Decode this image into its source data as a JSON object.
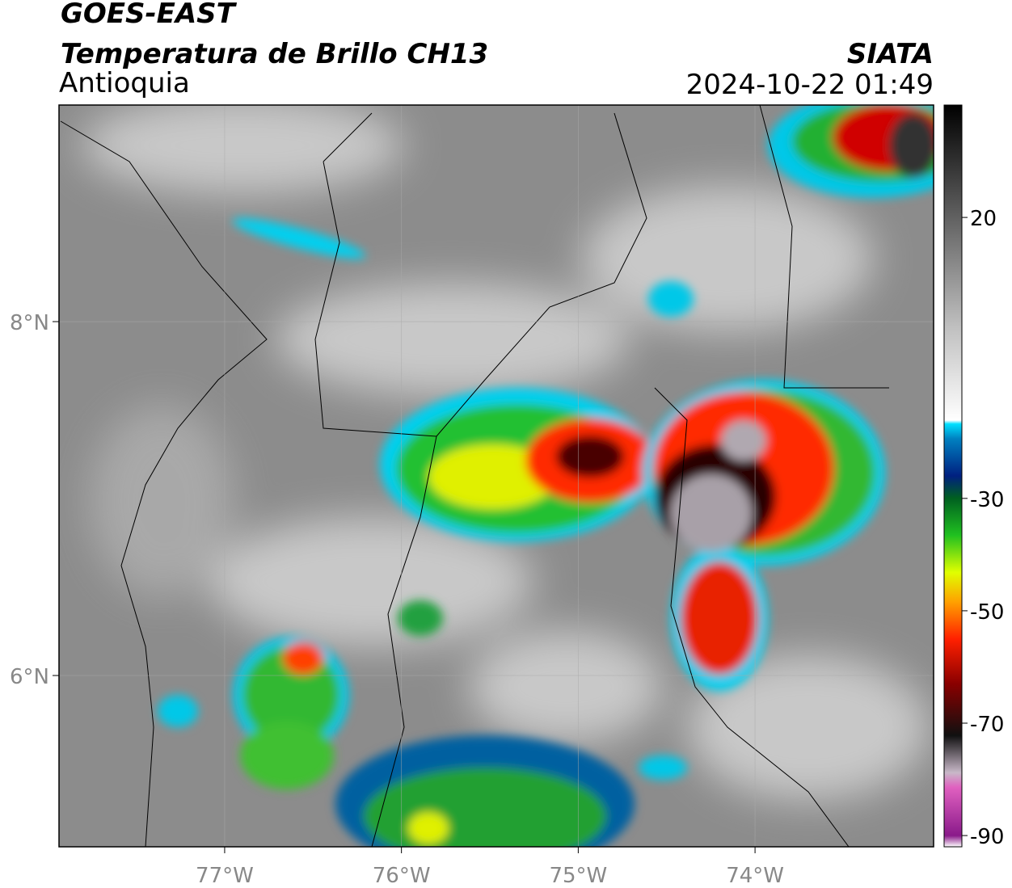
{
  "header": {
    "title": "GOES-EAST",
    "subtitle": "Temperatura de Brillo CH13",
    "region": "Antioquia",
    "source": "SIATA",
    "datetime": "2024-10-22 01:49"
  },
  "map": {
    "lonlim": [
      -77.937,
      -72.99
    ],
    "latlim": [
      5.032,
      9.224
    ],
    "lonticks": [
      {
        "value": -77,
        "label": "77°W"
      },
      {
        "value": -76,
        "label": "76°W"
      },
      {
        "value": -75,
        "label": "75°W"
      },
      {
        "value": -74,
        "label": "74°W"
      }
    ],
    "latticks": [
      {
        "value": 8,
        "label": "8°N"
      },
      {
        "value": 6,
        "label": "6°N"
      }
    ]
  },
  "colorbar": {
    "lim": [
      -92,
      40
    ],
    "ticks": [
      20,
      -30,
      -50,
      -70,
      -90
    ]
  }
}
